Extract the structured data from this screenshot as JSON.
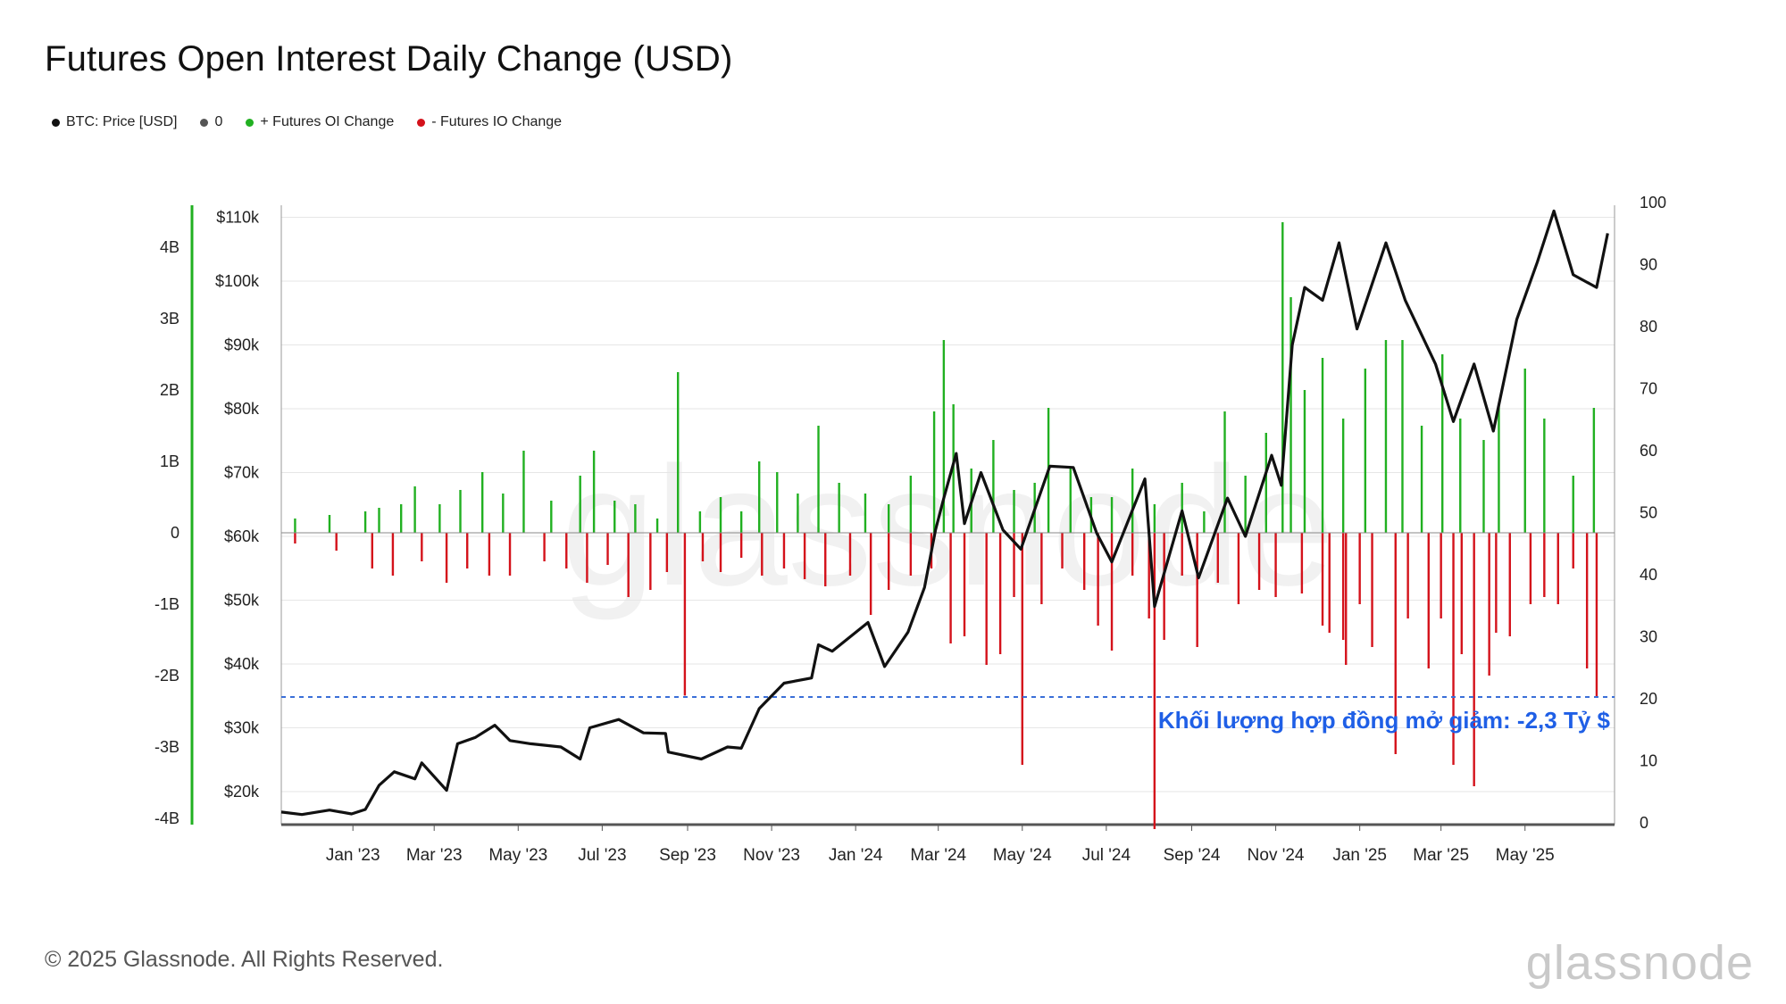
{
  "title": "Futures Open Interest Daily Change (USD)",
  "legend": [
    {
      "label": "BTC: Price [USD]",
      "color": "#111111"
    },
    {
      "label": "0",
      "color": "#555555"
    },
    {
      "label": "+ Futures OI Change",
      "color": "#21b021"
    },
    {
      "label": "- Futures IO Change",
      "color": "#d4121b"
    }
  ],
  "annotation": "Khối lượng hợp đồng mở giảm: -2,3 Tỷ $",
  "footer": {
    "copyright": "© 2025 Glassnode. All Rights Reserved.",
    "brand": "glassnode"
  },
  "colors": {
    "pos": "#21b021",
    "neg": "#d4121b",
    "price": "#111111",
    "ref": "#3a6fd8",
    "axis_green": "#21b021",
    "annotation": "#1f5fe6"
  },
  "chart_data": {
    "type": "bar",
    "x_tick_labels": [
      "Jan '23",
      "Mar '23",
      "May '23",
      "Jul '23",
      "Sep '23",
      "Nov '23",
      "Jan '24",
      "Mar '24",
      "May '24",
      "Jul '24",
      "Sep '24",
      "Nov '24",
      "Jan '25",
      "Mar '25",
      "May '25"
    ],
    "y_left_outer": {
      "ticks": [
        4,
        3,
        2,
        1,
        0,
        -1,
        -2,
        -3,
        -4
      ],
      "labels": [
        "4B",
        "3B",
        "2B",
        "1B",
        "0",
        "-1B",
        "-2B",
        "-3B",
        "-4B"
      ],
      "range": [
        -4,
        4
      ]
    },
    "y_left_inner": {
      "ticks": [
        110000,
        100000,
        90000,
        80000,
        70000,
        60000,
        50000,
        40000,
        30000,
        20000
      ],
      "labels": [
        "$110k",
        "$100k",
        "$90k",
        "$80k",
        "$70k",
        "$60k",
        "$50k",
        "$40k",
        "$30k",
        "$20k"
      ]
    },
    "y_right": {
      "ticks": [
        100,
        90,
        80,
        70,
        60,
        50,
        40,
        30,
        20,
        10,
        0
      ],
      "labels": [
        "100",
        "90",
        "80",
        "70",
        "60",
        "50",
        "40",
        "30",
        "20",
        "10",
        "0"
      ]
    },
    "reference_line": {
      "value_b": -2.3
    },
    "series": [
      {
        "name": "+ Futures OI Change",
        "kind": "bar",
        "points": [
          [
            "2022-11-20",
            0.2
          ],
          [
            "2022-12-15",
            0.25
          ],
          [
            "2023-01-10",
            0.3
          ],
          [
            "2023-01-20",
            0.35
          ],
          [
            "2023-02-05",
            0.4
          ],
          [
            "2023-02-15",
            0.65
          ],
          [
            "2023-03-05",
            0.4
          ],
          [
            "2023-03-20",
            0.6
          ],
          [
            "2023-04-05",
            0.85
          ],
          [
            "2023-04-20",
            0.55
          ],
          [
            "2023-05-05",
            1.15
          ],
          [
            "2023-05-25",
            0.45
          ],
          [
            "2023-06-15",
            0.8
          ],
          [
            "2023-06-25",
            1.15
          ],
          [
            "2023-07-10",
            0.45
          ],
          [
            "2023-07-25",
            0.4
          ],
          [
            "2023-08-10",
            0.2
          ],
          [
            "2023-08-25",
            2.25
          ],
          [
            "2023-09-10",
            0.3
          ],
          [
            "2023-09-25",
            0.5
          ],
          [
            "2023-10-10",
            0.3
          ],
          [
            "2023-10-23",
            1.0
          ],
          [
            "2023-11-05",
            0.85
          ],
          [
            "2023-11-20",
            0.55
          ],
          [
            "2023-12-05",
            1.5
          ],
          [
            "2023-12-20",
            0.7
          ],
          [
            "2024-01-08",
            0.55
          ],
          [
            "2024-01-25",
            0.4
          ],
          [
            "2024-02-10",
            0.8
          ],
          [
            "2024-02-27",
            1.7
          ],
          [
            "2024-03-05",
            2.7
          ],
          [
            "2024-03-12",
            1.8
          ],
          [
            "2024-03-25",
            0.9
          ],
          [
            "2024-04-10",
            1.3
          ],
          [
            "2024-04-25",
            0.6
          ],
          [
            "2024-05-10",
            0.7
          ],
          [
            "2024-05-20",
            1.75
          ],
          [
            "2024-06-05",
            0.9
          ],
          [
            "2024-06-20",
            0.5
          ],
          [
            "2024-07-05",
            0.5
          ],
          [
            "2024-07-20",
            0.9
          ],
          [
            "2024-08-05",
            0.4
          ],
          [
            "2024-08-25",
            0.7
          ],
          [
            "2024-09-10",
            0.3
          ],
          [
            "2024-09-25",
            1.7
          ],
          [
            "2024-10-10",
            0.8
          ],
          [
            "2024-10-25",
            1.4
          ],
          [
            "2024-11-06",
            4.35
          ],
          [
            "2024-11-12",
            3.3
          ],
          [
            "2024-11-22",
            2.0
          ],
          [
            "2024-12-05",
            2.45
          ],
          [
            "2024-12-20",
            1.6
          ],
          [
            "2025-01-05",
            2.3
          ],
          [
            "2025-01-20",
            2.7
          ],
          [
            "2025-02-01",
            2.7
          ],
          [
            "2025-02-15",
            1.5
          ],
          [
            "2025-03-02",
            2.5
          ],
          [
            "2025-03-15",
            1.6
          ],
          [
            "2025-04-01",
            1.3
          ],
          [
            "2025-04-12",
            1.8
          ],
          [
            "2025-05-01",
            2.3
          ],
          [
            "2025-05-15",
            1.6
          ],
          [
            "2025-06-05",
            0.8
          ],
          [
            "2025-06-20",
            1.75
          ]
        ]
      },
      {
        "name": "- Futures IO Change",
        "kind": "bar",
        "points": [
          [
            "2022-11-20",
            -0.15
          ],
          [
            "2022-12-20",
            -0.25
          ],
          [
            "2023-01-15",
            -0.5
          ],
          [
            "2023-01-30",
            -0.6
          ],
          [
            "2023-02-20",
            -0.4
          ],
          [
            "2023-03-10",
            -0.7
          ],
          [
            "2023-03-25",
            -0.5
          ],
          [
            "2023-04-10",
            -0.6
          ],
          [
            "2023-04-25",
            -0.6
          ],
          [
            "2023-05-20",
            -0.4
          ],
          [
            "2023-06-05",
            -0.5
          ],
          [
            "2023-06-20",
            -0.7
          ],
          [
            "2023-07-05",
            -0.45
          ],
          [
            "2023-07-20",
            -0.9
          ],
          [
            "2023-08-05",
            -0.8
          ],
          [
            "2023-08-17",
            -0.55
          ],
          [
            "2023-08-30",
            -2.28
          ],
          [
            "2023-09-12",
            -0.4
          ],
          [
            "2023-09-25",
            -0.55
          ],
          [
            "2023-10-10",
            -0.35
          ],
          [
            "2023-10-25",
            -0.6
          ],
          [
            "2023-11-10",
            -0.5
          ],
          [
            "2023-11-25",
            -0.65
          ],
          [
            "2023-12-10",
            -0.75
          ],
          [
            "2023-12-28",
            -0.6
          ],
          [
            "2024-01-12",
            -1.15
          ],
          [
            "2024-01-25",
            -0.8
          ],
          [
            "2024-02-10",
            -0.6
          ],
          [
            "2024-02-25",
            -0.5
          ],
          [
            "2024-03-10",
            -1.55
          ],
          [
            "2024-03-20",
            -1.45
          ],
          [
            "2024-04-05",
            -1.85
          ],
          [
            "2024-04-15",
            -1.7
          ],
          [
            "2024-04-25",
            -0.9
          ],
          [
            "2024-05-01",
            -3.25
          ],
          [
            "2024-05-15",
            -1.0
          ],
          [
            "2024-05-30",
            -0.5
          ],
          [
            "2024-06-15",
            -0.8
          ],
          [
            "2024-06-25",
            -1.3
          ],
          [
            "2024-07-05",
            -1.65
          ],
          [
            "2024-07-20",
            -0.6
          ],
          [
            "2024-08-01",
            -1.2
          ],
          [
            "2024-08-05",
            -4.15
          ],
          [
            "2024-08-12",
            -1.5
          ],
          [
            "2024-08-25",
            -0.6
          ],
          [
            "2024-09-05",
            -1.6
          ],
          [
            "2024-09-20",
            -0.7
          ],
          [
            "2024-10-05",
            -1.0
          ],
          [
            "2024-10-20",
            -0.8
          ],
          [
            "2024-11-01",
            -0.9
          ],
          [
            "2024-11-20",
            -0.85
          ],
          [
            "2024-12-05",
            -1.3
          ],
          [
            "2024-12-10",
            -1.4
          ],
          [
            "2024-12-20",
            -1.5
          ],
          [
            "2024-12-22",
            -1.85
          ],
          [
            "2025-01-01",
            -1.0
          ],
          [
            "2025-01-10",
            -1.6
          ],
          [
            "2025-01-27",
            -3.1
          ],
          [
            "2025-02-05",
            -1.2
          ],
          [
            "2025-02-20",
            -1.9
          ],
          [
            "2025-03-01",
            -1.2
          ],
          [
            "2025-03-10",
            -3.25
          ],
          [
            "2025-03-16",
            -1.7
          ],
          [
            "2025-03-25",
            -3.55
          ],
          [
            "2025-04-05",
            -2.0
          ],
          [
            "2025-04-10",
            -1.4
          ],
          [
            "2025-04-20",
            -1.45
          ],
          [
            "2025-05-05",
            -1.0
          ],
          [
            "2025-05-15",
            -0.9
          ],
          [
            "2025-05-25",
            -1.0
          ],
          [
            "2025-06-05",
            -0.5
          ],
          [
            "2025-06-15",
            -1.9
          ],
          [
            "2025-06-22",
            -2.3
          ]
        ]
      },
      {
        "name": "BTC: Price [USD]",
        "kind": "line",
        "points": [
          [
            "2022-11-10",
            16800
          ],
          [
            "2022-11-25",
            16400
          ],
          [
            "2022-12-15",
            17100
          ],
          [
            "2022-12-31",
            16500
          ],
          [
            "2023-01-10",
            17200
          ],
          [
            "2023-01-20",
            21000
          ],
          [
            "2023-01-31",
            23100
          ],
          [
            "2023-02-15",
            22000
          ],
          [
            "2023-02-20",
            24500
          ],
          [
            "2023-03-10",
            20200
          ],
          [
            "2023-03-18",
            27500
          ],
          [
            "2023-03-31",
            28500
          ],
          [
            "2023-04-14",
            30400
          ],
          [
            "2023-04-25",
            28000
          ],
          [
            "2023-05-10",
            27500
          ],
          [
            "2023-06-01",
            27000
          ],
          [
            "2023-06-15",
            25100
          ],
          [
            "2023-06-22",
            30000
          ],
          [
            "2023-07-13",
            31300
          ],
          [
            "2023-07-31",
            29200
          ],
          [
            "2023-08-16",
            29100
          ],
          [
            "2023-08-18",
            26200
          ],
          [
            "2023-09-11",
            25100
          ],
          [
            "2023-09-30",
            27000
          ],
          [
            "2023-10-10",
            26800
          ],
          [
            "2023-10-23",
            33000
          ],
          [
            "2023-11-10",
            37000
          ],
          [
            "2023-11-30",
            37800
          ],
          [
            "2023-12-05",
            43000
          ],
          [
            "2023-12-15",
            42000
          ],
          [
            "2024-01-10",
            46500
          ],
          [
            "2024-01-22",
            39600
          ],
          [
            "2024-02-08",
            45000
          ],
          [
            "2024-02-20",
            52000
          ],
          [
            "2024-02-28",
            61000
          ],
          [
            "2024-03-05",
            66000
          ],
          [
            "2024-03-14",
            73000
          ],
          [
            "2024-03-20",
            62000
          ],
          [
            "2024-04-01",
            70000
          ],
          [
            "2024-04-17",
            61000
          ],
          [
            "2024-04-30",
            58000
          ],
          [
            "2024-05-21",
            71000
          ],
          [
            "2024-06-07",
            70800
          ],
          [
            "2024-06-24",
            60500
          ],
          [
            "2024-07-05",
            56000
          ],
          [
            "2024-07-29",
            69000
          ],
          [
            "2024-08-05",
            49000
          ],
          [
            "2024-08-25",
            64000
          ],
          [
            "2024-09-06",
            53500
          ],
          [
            "2024-09-27",
            66000
          ],
          [
            "2024-10-10",
            60000
          ],
          [
            "2024-10-29",
            72700
          ],
          [
            "2024-11-05",
            68000
          ],
          [
            "2024-11-13",
            90000
          ],
          [
            "2024-11-22",
            99000
          ],
          [
            "2024-12-05",
            97000
          ],
          [
            "2024-12-17",
            106000
          ],
          [
            "2024-12-30",
            92500
          ],
          [
            "2025-01-20",
            106000
          ],
          [
            "2025-02-03",
            97000
          ],
          [
            "2025-02-25",
            87000
          ],
          [
            "2025-03-10",
            78000
          ],
          [
            "2025-03-25",
            87000
          ],
          [
            "2025-04-08",
            76500
          ],
          [
            "2025-04-25",
            94000
          ],
          [
            "2025-05-10",
            103000
          ],
          [
            "2025-05-22",
            111000
          ],
          [
            "2025-06-05",
            101000
          ],
          [
            "2025-06-22",
            99000
          ],
          [
            "2025-06-30",
            107500
          ]
        ]
      }
    ]
  }
}
